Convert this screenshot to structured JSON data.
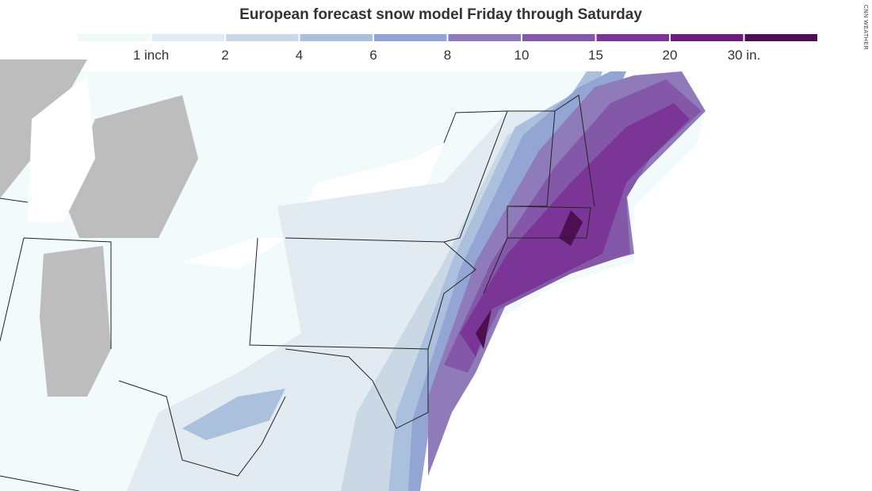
{
  "header": {
    "title": "European forecast snow model Friday through Saturday",
    "credit": "CNN WEATHER"
  },
  "legend": {
    "labels": [
      "1 inch",
      "2",
      "4",
      "6",
      "8",
      "10",
      "15",
      "20",
      "30 in."
    ],
    "colors": [
      "#f1f8fa",
      "#e2ebf1",
      "#cad8e6",
      "#abc0dc",
      "#93a5d2",
      "#8f7bb9",
      "#8458a8",
      "#7a3597",
      "#6b1d7e",
      "#4b0f52"
    ]
  }
}
